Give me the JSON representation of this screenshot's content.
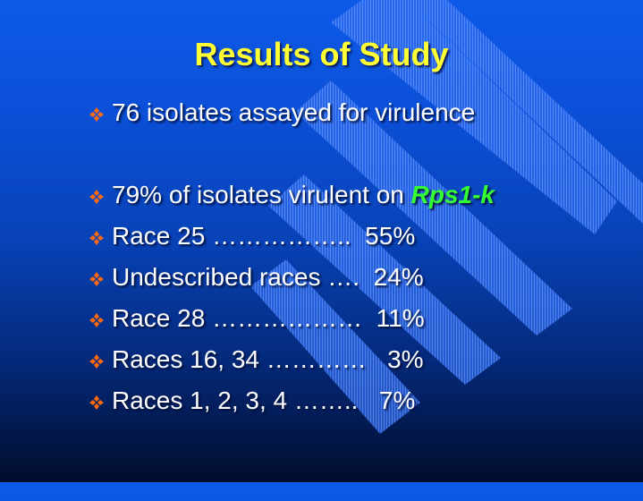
{
  "slide": {
    "title": "Results of Study",
    "bullets": [
      {
        "text": "76 isolates assayed for virulence"
      },
      {
        "text": "79% of isolates virulent on ",
        "highlight": "Rps1-k"
      },
      {
        "text": "Race 25 ……………..  55%"
      },
      {
        "text": "Undescribed races ….  24%"
      },
      {
        "text": "Race 28 ………………  11%"
      },
      {
        "text": "Races 16, 34 …………   3%"
      },
      {
        "text": "Races 1, 2, 3, 4 ……..   7%"
      }
    ],
    "bullet_icon": "diamond-bullet-icon",
    "colors": {
      "title": "#ffff33",
      "text": "#ffffff",
      "highlight": "#33ff33",
      "bullet": "#ff6600",
      "background_top": "#0d5ae8",
      "background_bottom": "#010d2c"
    }
  }
}
